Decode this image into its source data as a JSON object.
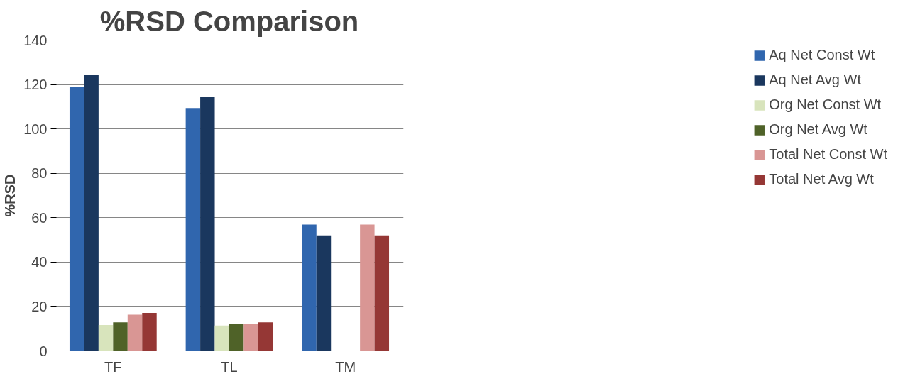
{
  "chart_data": {
    "type": "bar",
    "title": "%RSD Comparison",
    "ylabel": "%RSD",
    "categories": [
      "TF",
      "TL",
      "TM"
    ],
    "series": [
      {
        "name": "Aq Net Const Wt",
        "color": "#3066ae",
        "values": [
          118.9,
          109.4,
          56.9
        ]
      },
      {
        "name": "Aq Net Avg Wt",
        "color": "#1a375e",
        "values": [
          124.3,
          114.6,
          52
        ]
      },
      {
        "name": "Org Net Const Wt",
        "color": "#d8e4bc",
        "values": [
          11.7,
          11.4,
          null
        ]
      },
      {
        "name": "Org Net Avg Wt",
        "color": "#4f6228",
        "values": [
          12.9,
          12.3,
          null
        ]
      },
      {
        "name": "Total Net Const Wt",
        "color": "#d99694",
        "values": [
          16.3,
          12,
          56.9
        ]
      },
      {
        "name": "Total Net Avg Wt",
        "color": "#953735",
        "values": [
          17.1,
          12.9,
          52
        ]
      }
    ],
    "ylim": [
      0,
      140
    ],
    "yticks": [
      0,
      20,
      40,
      60,
      80,
      100,
      120,
      140
    ],
    "grid": "y",
    "legend": "right"
  }
}
